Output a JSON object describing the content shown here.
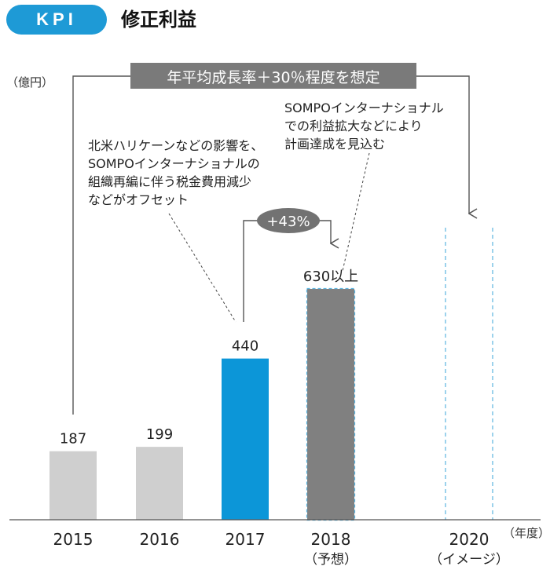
{
  "header": {
    "badge": "KPI",
    "title": "修正利益"
  },
  "chart_data": {
    "type": "bar",
    "title": "修正利益",
    "ylabel": "（億円）",
    "xlabel": "（年度）",
    "ylim": [
      0,
      1000
    ],
    "categories": [
      {
        "year": "2015",
        "sub": ""
      },
      {
        "year": "2016",
        "sub": ""
      },
      {
        "year": "2017",
        "sub": ""
      },
      {
        "year": "2018",
        "sub": "（予想）"
      },
      {
        "year": "2020",
        "sub": "（イメージ）"
      }
    ],
    "bars": [
      {
        "category": "2015",
        "value": 187,
        "label": "187",
        "color": "#cfcfcf",
        "dashed": false
      },
      {
        "category": "2016",
        "value": 199,
        "label": "199",
        "color": "#cfcfcf",
        "dashed": false
      },
      {
        "category": "2017",
        "value": 440,
        "label": "440",
        "color": "#0c96d8",
        "dashed": false
      },
      {
        "category": "2018",
        "value": 630,
        "label": "630以上",
        "color": "#808080",
        "dashed": true
      },
      {
        "category": "2020",
        "value": null,
        "label": "",
        "color": "none",
        "dashed": true
      }
    ],
    "annotations": {
      "growth_target": "年平均成長率＋30％程度を想定",
      "growth_badge": "+43%",
      "note_2017": [
        "北米ハリケーンなどの影響を、",
        "SOMPOインターナショナルの",
        "組織再編に伴う税金費用減少",
        "などがオフセット"
      ],
      "note_2018": [
        "SOMPOインターナショナル",
        "での利益拡大などにより",
        "計画達成を見込む"
      ]
    },
    "colors": {
      "accent": "#1e9ad6",
      "bar_2017": "#0c96d8",
      "bar_2018": "#808080",
      "bar_gray": "#cfcfcf",
      "dashed": "#5ab4e0",
      "target_box": "#7a7a7a",
      "badge": "#727272"
    }
  }
}
